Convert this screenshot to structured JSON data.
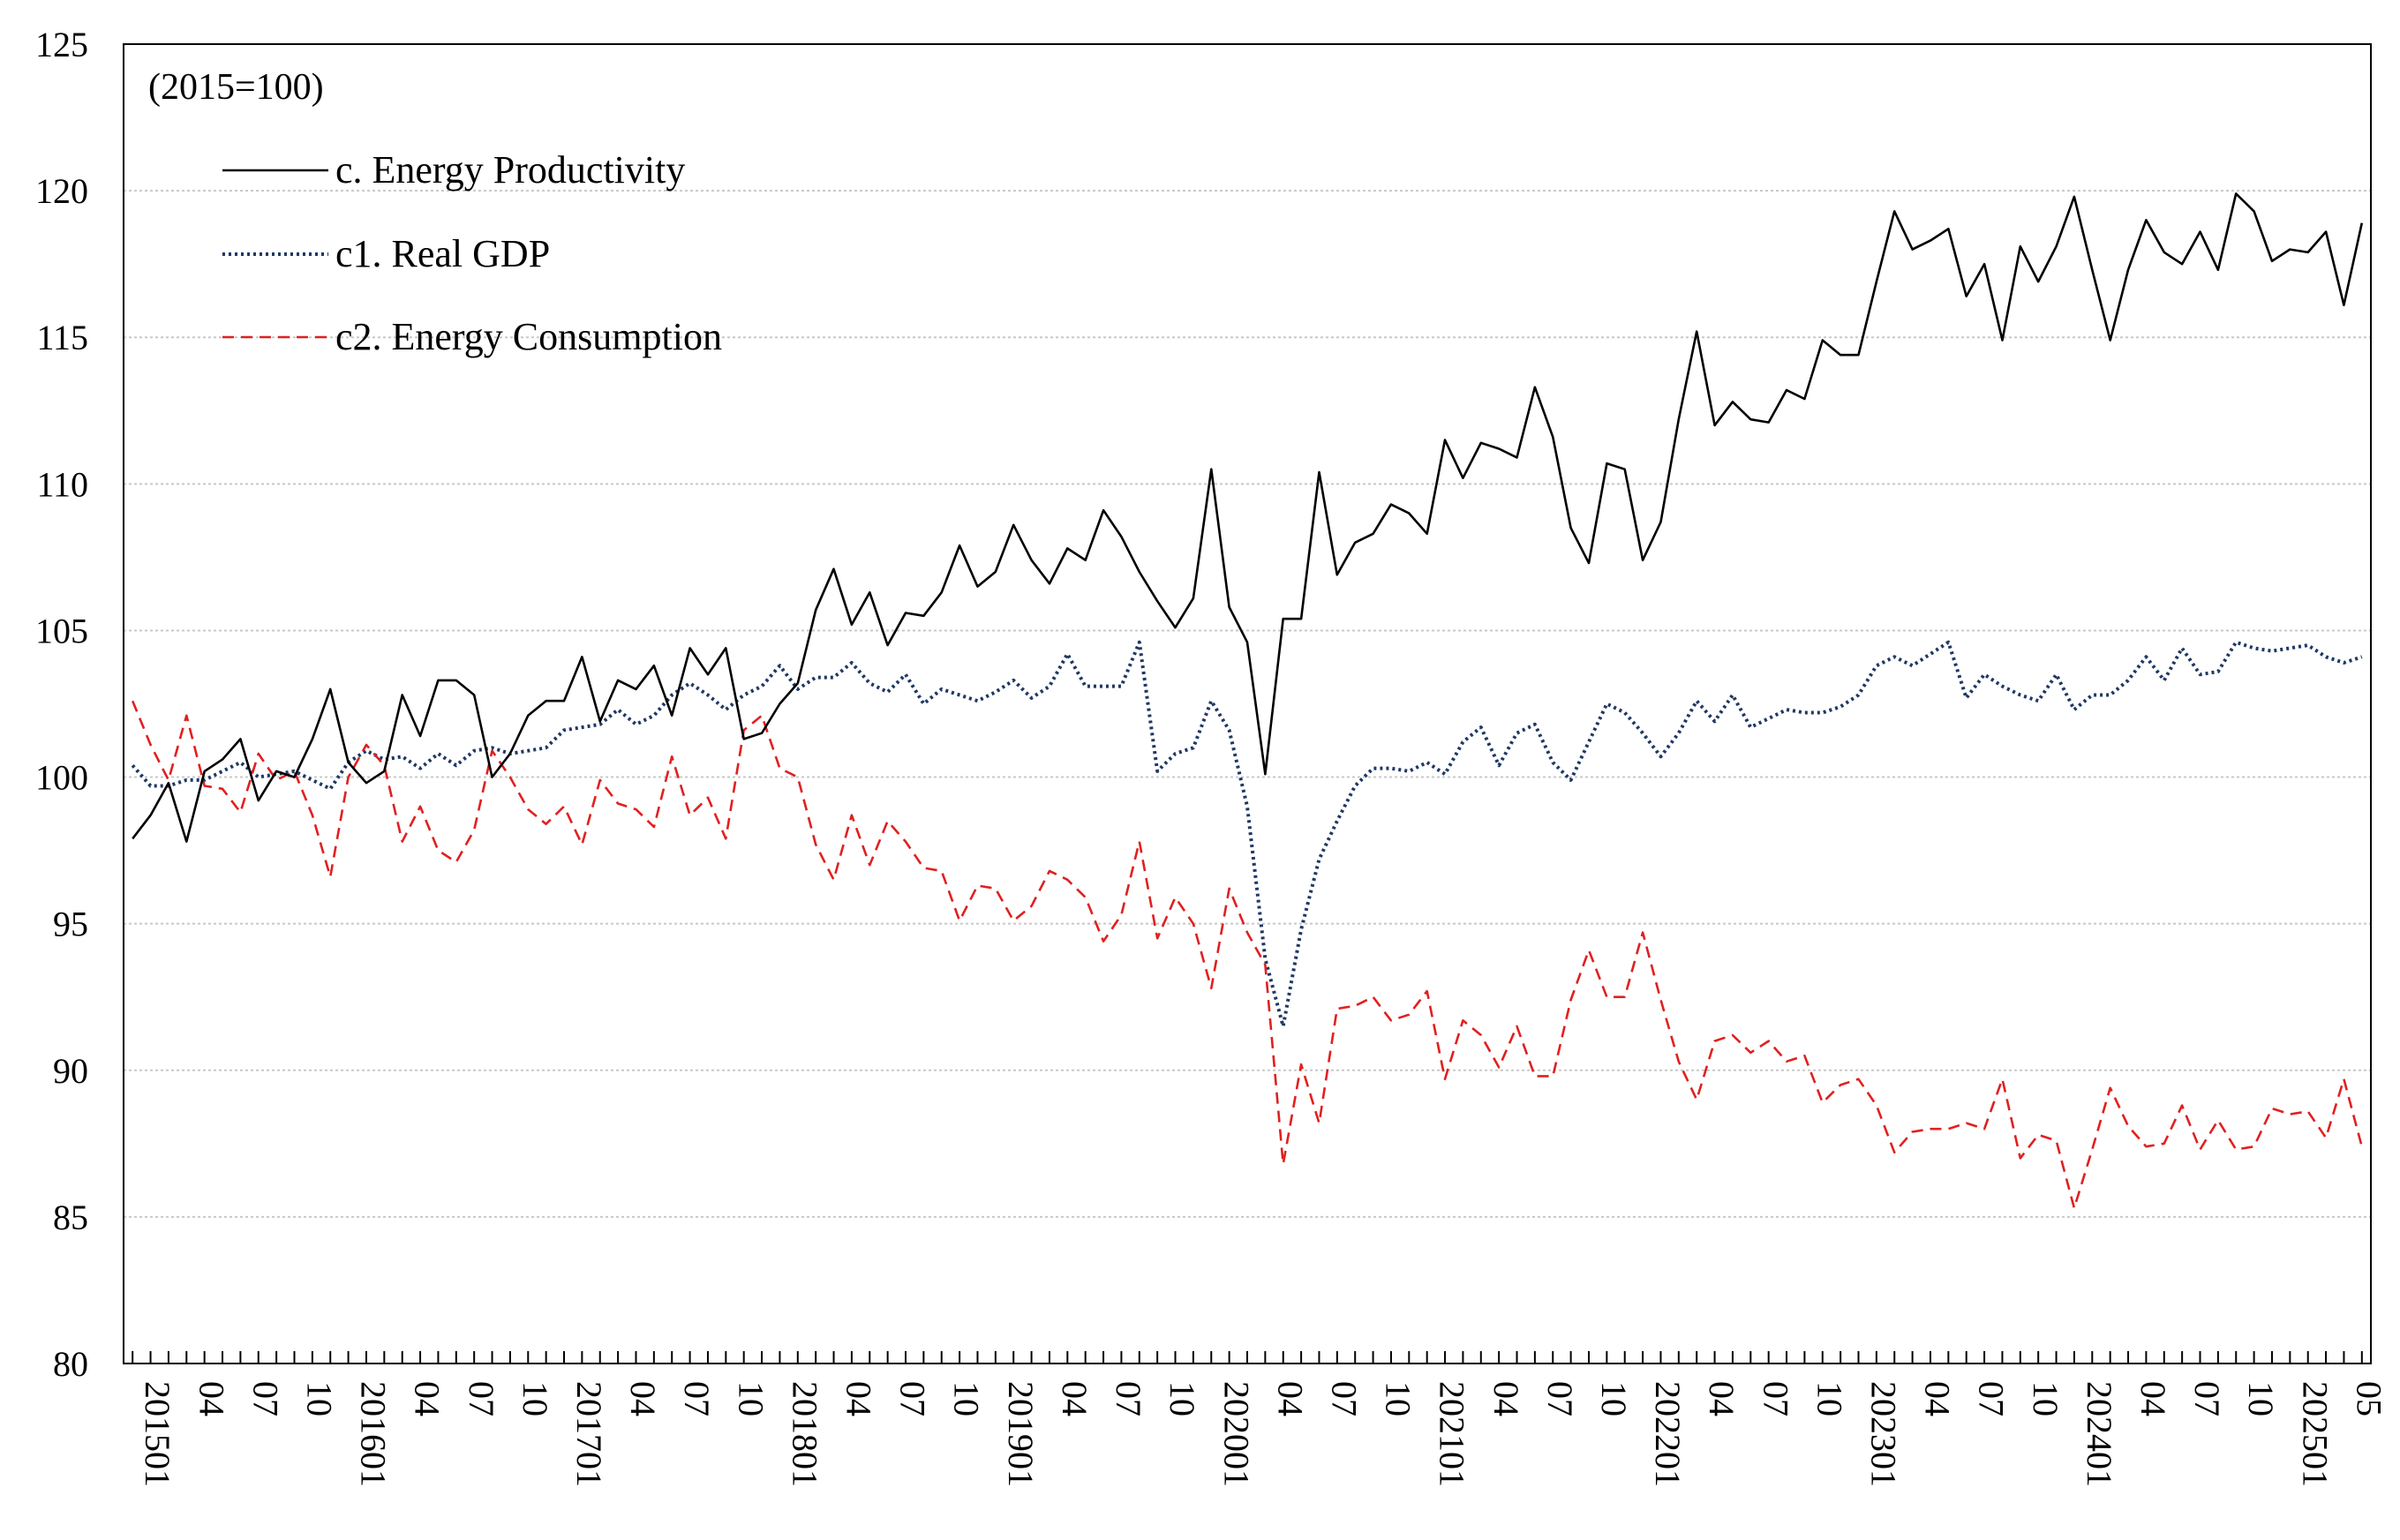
{
  "chart_data": {
    "type": "line",
    "subtitle": "(2015=100)",
    "ylim": [
      80,
      125
    ],
    "yticks": [
      80,
      85,
      90,
      95,
      100,
      105,
      110,
      115,
      120,
      125
    ],
    "grid": true,
    "legend_position": "top-left",
    "x_start": "2015-01",
    "x_end": "2025-05",
    "x_labels": [
      "201501",
      "04",
      "07",
      "10",
      "201601",
      "04",
      "07",
      "10",
      "201701",
      "04",
      "07",
      "10",
      "201801",
      "04",
      "07",
      "10",
      "201901",
      "04",
      "07",
      "10",
      "202001",
      "04",
      "07",
      "10",
      "202101",
      "04",
      "07",
      "10",
      "202201",
      "04",
      "07",
      "10",
      "202301",
      "04",
      "07",
      "10",
      "202401",
      "04",
      "07",
      "10",
      "202501",
      "05"
    ],
    "series": [
      {
        "name": "c. Energy Productivity",
        "color": "#000000",
        "style": "solid",
        "values": [
          97.9,
          98.7,
          99.8,
          97.8,
          100.2,
          100.6,
          101.3,
          99.2,
          100.2,
          100.0,
          101.3,
          103.0,
          100.5,
          99.8,
          100.2,
          102.8,
          101.4,
          103.3,
          103.3,
          102.8,
          100.0,
          100.8,
          102.1,
          102.6,
          102.6,
          104.1,
          101.9,
          103.3,
          103.0,
          103.8,
          102.1,
          104.4,
          103.5,
          104.4,
          101.3,
          101.5,
          102.5,
          103.2,
          105.7,
          107.1,
          105.2,
          106.3,
          104.5,
          105.6,
          105.5,
          106.3,
          107.9,
          106.5,
          107.0,
          108.6,
          107.4,
          106.6,
          107.8,
          107.4,
          109.1,
          108.2,
          107.0,
          106.0,
          105.1,
          106.1,
          110.5,
          105.8,
          104.6,
          100.1,
          105.4,
          105.4,
          110.4,
          106.9,
          108.0,
          108.3,
          109.3,
          109.0,
          108.3,
          111.5,
          110.2,
          111.4,
          111.2,
          110.9,
          113.3,
          111.6,
          108.5,
          107.3,
          110.7,
          110.5,
          107.4,
          108.7,
          112.2,
          115.2,
          112.0,
          112.8,
          112.2,
          112.1,
          113.2,
          112.9,
          114.9,
          114.4,
          114.4,
          116.9,
          119.3,
          118.0,
          118.3,
          118.7,
          116.4,
          117.5,
          114.9,
          118.1,
          116.9,
          118.1,
          119.8,
          117.3,
          114.9,
          117.3,
          119.0,
          117.9,
          117.5,
          118.6,
          117.3,
          119.9,
          119.3,
          117.6,
          118.0,
          117.9,
          118.6,
          116.1,
          118.9
        ]
      },
      {
        "name": "c1. Real GDP",
        "color": "#1f3864",
        "style": "dotted",
        "values": [
          100.4,
          99.7,
          99.7,
          99.9,
          99.9,
          100.2,
          100.5,
          100.0,
          100.1,
          100.2,
          99.9,
          99.6,
          100.5,
          100.9,
          100.6,
          100.7,
          100.3,
          100.8,
          100.4,
          100.9,
          101.0,
          100.8,
          100.9,
          101.0,
          101.6,
          101.7,
          101.8,
          102.3,
          101.8,
          102.1,
          102.8,
          103.2,
          102.8,
          102.3,
          102.8,
          103.1,
          103.8,
          103.0,
          103.4,
          103.4,
          103.9,
          103.2,
          102.9,
          103.5,
          102.5,
          103.0,
          102.8,
          102.6,
          102.9,
          103.3,
          102.7,
          103.1,
          104.2,
          103.1,
          103.1,
          103.1,
          104.6,
          100.2,
          100.8,
          101.0,
          102.6,
          101.6,
          99.0,
          93.8,
          91.5,
          94.8,
          97.2,
          98.5,
          99.7,
          100.3,
          100.3,
          100.2,
          100.5,
          100.1,
          101.2,
          101.7,
          100.4,
          101.5,
          101.8,
          100.5,
          99.9,
          101.2,
          102.5,
          102.2,
          101.5,
          100.7,
          101.5,
          102.6,
          101.9,
          102.8,
          101.7,
          102.0,
          102.3,
          102.2,
          102.2,
          102.4,
          102.8,
          103.8,
          104.1,
          103.8,
          104.2,
          104.6,
          102.7,
          103.5,
          103.1,
          102.8,
          102.6,
          103.5,
          102.3,
          102.8,
          102.8,
          103.3,
          104.1,
          103.3,
          104.4,
          103.5,
          103.6,
          104.6,
          104.4,
          104.3,
          104.4,
          104.5,
          104.1,
          103.9,
          104.1
        ]
      },
      {
        "name": "c2. Energy Consumption",
        "color": "#e02020",
        "style": "dashed",
        "values": [
          102.6,
          101.1,
          99.9,
          102.1,
          99.7,
          99.6,
          98.8,
          100.8,
          99.9,
          100.2,
          98.7,
          96.6,
          100.0,
          101.1,
          100.4,
          97.8,
          99.0,
          97.5,
          97.1,
          98.2,
          100.9,
          100.0,
          98.9,
          98.4,
          99.0,
          97.7,
          99.9,
          99.1,
          98.9,
          98.3,
          100.7,
          98.7,
          99.3,
          97.9,
          101.6,
          102.1,
          100.3,
          100.0,
          97.7,
          96.5,
          98.7,
          97.0,
          98.5,
          97.8,
          96.9,
          96.8,
          95.1,
          96.3,
          96.2,
          95.1,
          95.6,
          96.8,
          96.5,
          95.9,
          94.4,
          95.3,
          97.8,
          94.5,
          95.9,
          95.0,
          92.8,
          96.2,
          94.7,
          93.6,
          86.8,
          90.2,
          88.2,
          92.1,
          92.2,
          92.5,
          91.7,
          91.9,
          92.7,
          89.7,
          91.7,
          91.2,
          90.1,
          91.5,
          89.8,
          89.8,
          92.4,
          94.1,
          92.5,
          92.5,
          94.7,
          92.4,
          90.3,
          89.0,
          91.0,
          91.2,
          90.6,
          91.0,
          90.3,
          90.5,
          88.9,
          89.5,
          89.7,
          88.8,
          87.2,
          87.9,
          88.0,
          88.0,
          88.2,
          88.0,
          89.7,
          87.0,
          87.8,
          87.6,
          85.3,
          87.3,
          89.4,
          88.1,
          87.4,
          87.5,
          88.8,
          87.3,
          88.3,
          87.3,
          87.4,
          88.7,
          88.5,
          88.6,
          87.7,
          89.7,
          87.4
        ]
      }
    ]
  }
}
